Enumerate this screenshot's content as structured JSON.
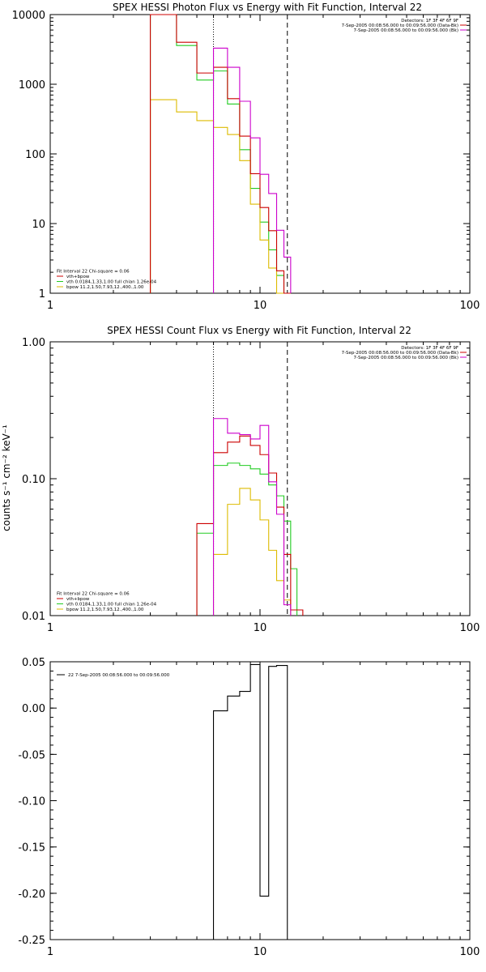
{
  "colors": {
    "data": "#cc0000",
    "total": "#cc00cc",
    "vth": "#22cc22",
    "bpow": "#ddbb00",
    "resid": "#000000"
  },
  "chart_data": [
    {
      "type": "line",
      "scale": "log-log",
      "title": "SPEX HESSI Photon Flux vs Energy with Fit Function, Interval 22",
      "xlim": [
        1,
        100
      ],
      "ylim": [
        1,
        10000
      ],
      "xticks": [
        {
          "value": 1,
          "label": "1"
        },
        {
          "value": 10,
          "label": "10"
        },
        {
          "value": 100,
          "label": "100"
        }
      ],
      "yticks": [
        {
          "value": 1,
          "label": "1"
        },
        {
          "value": 10,
          "label": "10"
        },
        {
          "value": 100,
          "label": "100"
        },
        {
          "value": 1000,
          "label": "1000"
        },
        {
          "value": 10000,
          "label": "10000"
        }
      ],
      "vlines": [
        {
          "x": 6.0,
          "style": "dotted"
        },
        {
          "x": 13.5,
          "style": "dashed"
        }
      ],
      "info_top_right": [
        {
          "text": "Detectors: 1F 3F 4F 6F 9F",
          "color": "#000000"
        },
        {
          "text": "7-Sep-2005 00:08:56.000 to 00:09:56.000 (Data-Bk)",
          "color": "#000000",
          "marker": "data"
        },
        {
          "text": "7-Sep-2005 00:08:56.000 to 00:09:56.000 (Bk)",
          "color": "#cc00cc",
          "marker": "total"
        }
      ],
      "legend_bottom_left": [
        {
          "text": "Fit Interval 22    Chi-square = 0.06",
          "color": "#000000"
        },
        {
          "text": "vth+bpow",
          "color": "#cc0000",
          "marker": "data"
        },
        {
          "text": "vth 0.0184,1.33,1.00  full chian 1.26e-04",
          "color": "#22cc22",
          "marker": "vth"
        },
        {
          "text": "bpow 11.2,1.50,7.93,12.,400.,1.00",
          "color": "#ddbb00",
          "marker": "bpow"
        }
      ],
      "edges": [
        3,
        4,
        5,
        6,
        7,
        8,
        9,
        10,
        11,
        12,
        13,
        14
      ],
      "series": [
        {
          "key": "vth",
          "color": "#22cc22",
          "start_x": 3,
          "values": [
            11000,
            3600,
            1150,
            1550,
            520,
            115,
            32,
            10.5,
            4.2,
            1.8,
            0.5
          ]
        },
        {
          "key": "bpow",
          "color": "#ddbb00",
          "start_x": 3,
          "values": [
            600,
            400,
            300,
            240,
            190,
            80,
            19,
            5.8,
            2.3,
            0.9,
            0.3
          ]
        },
        {
          "key": "data",
          "color": "#cc0000",
          "start_x": 3,
          "end_x": 14,
          "values": [
            11000,
            4000,
            1450,
            1750,
            620,
            180,
            52,
            17,
            7.9,
            2.1,
            1.0
          ]
        },
        {
          "key": "total",
          "color": "#cc00cc",
          "start_x": 6,
          "values": [
            3300,
            1750,
            570,
            170,
            51,
            27,
            8.0,
            3.3
          ]
        }
      ]
    },
    {
      "type": "line",
      "scale": "log-log",
      "title": "SPEX HESSI Count Flux vs Energy with Fit Function, Interval 22",
      "ylabel": "counts s⁻¹ cm⁻² keV⁻¹",
      "xlim": [
        1,
        100
      ],
      "ylim": [
        0.01,
        1.0
      ],
      "xticks": [
        {
          "value": 1,
          "label": "1"
        },
        {
          "value": 10,
          "label": "10"
        },
        {
          "value": 100,
          "label": "100"
        }
      ],
      "yticks": [
        {
          "value": 0.01,
          "label": "0.01"
        },
        {
          "value": 0.1,
          "label": "0.10"
        },
        {
          "value": 1.0,
          "label": "1.00"
        }
      ],
      "vlines": [
        {
          "x": 6.0,
          "style": "dotted"
        },
        {
          "x": 13.5,
          "style": "dashed"
        }
      ],
      "info_top_right": [
        {
          "text": "Detectors: 1F 3F 4F 6F 9F",
          "color": "#000000"
        },
        {
          "text": "7-Sep-2005 00:08:56.000 to 00:09:56.000 (Data-Bk)",
          "color": "#000000",
          "marker": "data"
        },
        {
          "text": "7-Sep-2005 00:08:56.000 to 00:09:56.000 (Bk)",
          "color": "#cc00cc",
          "marker": "total"
        }
      ],
      "legend_bottom_left": [
        {
          "text": "Fit Interval 22    Chi-square = 0.06",
          "color": "#000000"
        },
        {
          "text": "vth+bpow",
          "color": "#cc0000",
          "marker": "data"
        },
        {
          "text": "vth 0.0184,1.33,1.00  full chian 1.26e-04",
          "color": "#22cc22",
          "marker": "vth"
        },
        {
          "text": "bpow 11.2,1.50,7.93,12.,400.,1.00",
          "color": "#ddbb00",
          "marker": "bpow"
        }
      ],
      "edges": [
        5,
        6,
        7,
        8,
        9,
        10,
        11,
        12,
        13,
        14,
        15,
        16
      ],
      "series": [
        {
          "key": "vth",
          "color": "#22cc22",
          "start_x": 5,
          "end_x": 15,
          "values": [
            0.04,
            0.125,
            0.13,
            0.125,
            0.118,
            0.108,
            0.09,
            0.075,
            0.049,
            0.022
          ]
        },
        {
          "key": "bpow",
          "color": "#ddbb00",
          "start_x": 6,
          "end_x": 14,
          "values": [
            0.028,
            0.065,
            0.085,
            0.07,
            0.05,
            0.03,
            0.018,
            0.013
          ]
        },
        {
          "key": "data",
          "color": "#cc0000",
          "start_x": 5,
          "end_x": 16,
          "values": [
            0.047,
            0.155,
            0.185,
            0.205,
            0.175,
            0.15,
            0.11,
            0.062,
            0.028,
            0.011
          ]
        },
        {
          "key": "total",
          "color": "#cc00cc",
          "start_x": 6,
          "end_x": 14,
          "values": [
            0.275,
            0.215,
            0.21,
            0.195,
            0.245,
            0.095,
            0.055,
            0.012
          ]
        }
      ]
    },
    {
      "type": "line",
      "scale": "log-linear",
      "xlim": [
        1,
        100
      ],
      "ylim": [
        -0.25,
        0.05
      ],
      "xticks": [
        {
          "value": 1,
          "label": "1"
        },
        {
          "value": 10,
          "label": "10"
        },
        {
          "value": 100,
          "label": "100"
        }
      ],
      "yticks": [
        {
          "value": 0.05,
          "label": "0.05"
        },
        {
          "value": 0.0,
          "label": "0.00"
        },
        {
          "value": -0.05,
          "label": "-0.05"
        },
        {
          "value": -0.1,
          "label": "-0.10"
        },
        {
          "value": -0.15,
          "label": "-0.15"
        },
        {
          "value": -0.2,
          "label": "-0.20"
        },
        {
          "value": -0.25,
          "label": "-0.25"
        }
      ],
      "legend_top_left": [
        {
          "text": "22  7-Sep-2005 00:08:56.000 to 00:09:56.000",
          "color": "#000000",
          "marker": "resid"
        }
      ],
      "edges": [
        6,
        7,
        8,
        9,
        10,
        11,
        12,
        13.5
      ],
      "series": [
        {
          "key": "resid",
          "color": "#000000",
          "start_x": 6,
          "end_x": 13.5,
          "values": [
            -0.003,
            0.013,
            0.018,
            0.047,
            -0.203,
            0.045,
            0.046
          ]
        }
      ]
    }
  ]
}
